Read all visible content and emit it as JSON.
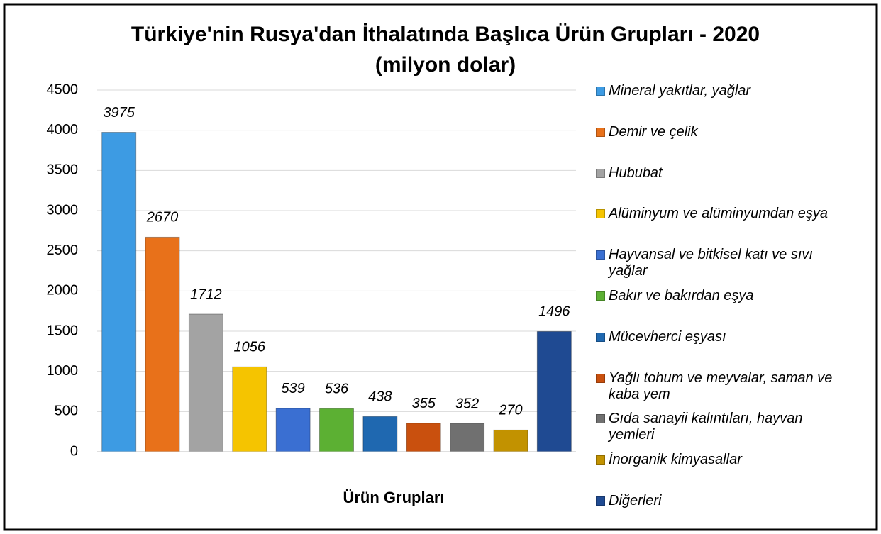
{
  "chart_data": {
    "type": "bar",
    "title": "Türkiye'nin Rusya'dan İthalatında Başlıca Ürün Grupları - 2020",
    "subtitle": "(milyon dolar)",
    "x_label": "Ürün Grupları",
    "categories": [
      "Mineral yakıtlar, yağlar",
      "Demir ve çelik",
      "Hububat",
      "Alüminyum ve alüminyumdan eşya",
      "Hayvansal ve bitkisel katı ve sıvı yağlar",
      "Bakır ve bakırdan eşya",
      "Mücevherci eşyası",
      "Yağlı tohum ve meyvalar, saman ve kaba yem",
      "Gıda sanayii kalıntıları, hayvan yemleri",
      "İnorganik kimyasallar",
      "Diğerleri"
    ],
    "values": [
      3975,
      2670,
      1712,
      1056,
      539,
      536,
      438,
      355,
      352,
      270,
      1496
    ],
    "colors": [
      "#3d9be3",
      "#e8711a",
      "#a3a3a3",
      "#f5c400",
      "#3a6fd2",
      "#5cb033",
      "#1f68b0",
      "#c9500e",
      "#707070",
      "#c29200",
      "#1f4a92"
    ],
    "ylim": [
      0,
      4500
    ],
    "yticks": [
      0,
      500,
      1000,
      1500,
      2000,
      2500,
      3000,
      3500,
      4000,
      4500
    ],
    "grid": true,
    "legend": "right"
  }
}
